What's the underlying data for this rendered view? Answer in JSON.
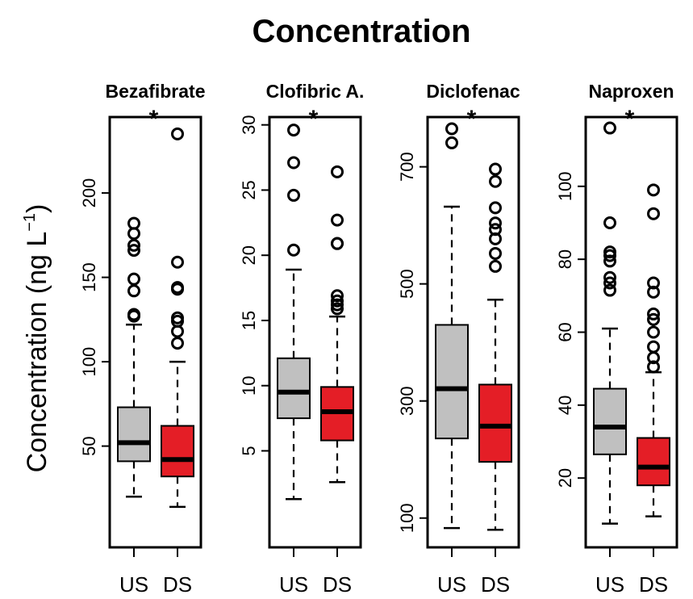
{
  "chart_data": {
    "type": "box",
    "title": "Concentration",
    "ylabel_main": "Concentration (ng L",
    "ylabel_sup": "−1",
    "ylabel_close": ")",
    "categories": [
      "US",
      "DS"
    ],
    "colors": {
      "US": "#c0c0c0",
      "DS": "#e41e26",
      "stroke": "#000000"
    },
    "significance_marker": "*",
    "panels": [
      {
        "name": "Bezafibrate",
        "ylim": [
          -10,
          245
        ],
        "yticks": [
          50,
          100,
          150,
          200
        ],
        "boxes": [
          {
            "category": "US",
            "whisker_low": 20,
            "q1": 41,
            "median": 52,
            "q3": 73,
            "whisker_high": 122,
            "outliers": [
              127,
              128,
              142,
              149,
              166,
              169,
              176,
              182
            ]
          },
          {
            "category": "DS",
            "whisker_low": 14,
            "q1": 32,
            "median": 42,
            "q3": 62,
            "whisker_high": 100,
            "outliers": [
              111,
              118,
              124,
              126,
              143,
              144,
              159,
              235
            ]
          }
        ]
      },
      {
        "name": "Clofibric A.",
        "ylim": [
          -2.4,
          30.6
        ],
        "yticks": [
          5,
          10,
          15,
          20,
          25,
          30
        ],
        "boxes": [
          {
            "category": "US",
            "whisker_low": 1.3,
            "q1": 7.5,
            "median": 9.5,
            "q3": 12.1,
            "whisker_high": 18.9,
            "outliers": [
              20.4,
              24.6,
              27.1,
              29.6
            ]
          },
          {
            "category": "DS",
            "whisker_low": 2.6,
            "q1": 5.8,
            "median": 8.0,
            "q3": 9.9,
            "whisker_high": 15.3,
            "outliers": [
              15.9,
              16.2,
              16.5,
              16.9,
              20.9,
              20.9,
              22.7,
              26.4
            ]
          }
        ]
      },
      {
        "name": "Diclofenac",
        "ylim": [
          50,
          785
        ],
        "yticks": [
          100,
          300,
          500,
          700
        ],
        "boxes": [
          {
            "category": "US",
            "whisker_low": 83,
            "q1": 236,
            "median": 321,
            "q3": 430,
            "whisker_high": 632,
            "outliers": [
              741,
              765
            ]
          },
          {
            "category": "DS",
            "whisker_low": 80,
            "q1": 196,
            "median": 257,
            "q3": 328,
            "whisker_high": 473,
            "outliers": [
              530,
              552,
              577,
              593,
              604,
              630,
              675,
              696
            ]
          }
        ]
      },
      {
        "name": "Naproxen",
        "ylim": [
          1,
          119
        ],
        "yticks": [
          20,
          40,
          60,
          80,
          100
        ],
        "boxes": [
          {
            "category": "US",
            "whisker_low": 7.5,
            "q1": 26.5,
            "median": 34,
            "q3": 44.5,
            "whisker_high": 61,
            "outliers": [
              71.5,
              73.5,
              75,
              79.5,
              81,
              82,
              90,
              116
            ]
          },
          {
            "category": "DS",
            "whisker_low": 9.5,
            "q1": 18,
            "median": 23,
            "q3": 31,
            "whisker_high": 49,
            "outliers": [
              50.5,
              53,
              56,
              60,
              63.5,
              65,
              71,
              73.5,
              92.5,
              99
            ]
          }
        ]
      }
    ]
  }
}
